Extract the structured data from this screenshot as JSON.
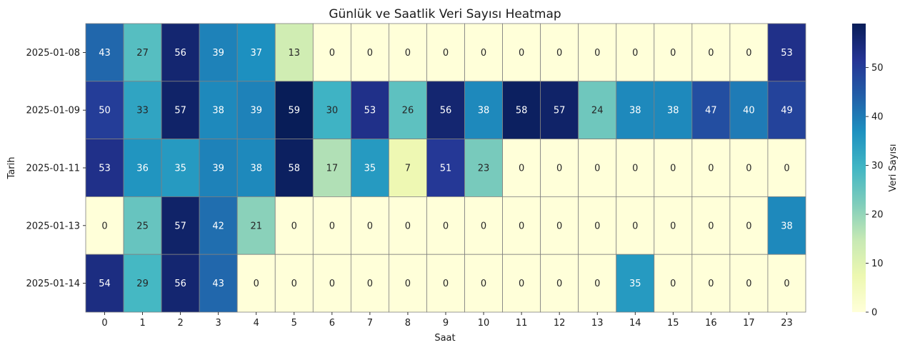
{
  "chart_data": {
    "type": "heatmap",
    "title": "Günlük ve Saatlik Veri Sayısı Heatmap",
    "xlabel": "Saat",
    "ylabel": "Tarih",
    "x_categories": [
      "0",
      "1",
      "2",
      "3",
      "4",
      "5",
      "6",
      "7",
      "8",
      "9",
      "10",
      "11",
      "12",
      "13",
      "14",
      "15",
      "16",
      "17",
      "23"
    ],
    "y_categories": [
      "2025-01-08",
      "2025-01-09",
      "2025-01-11",
      "2025-01-13",
      "2025-01-14"
    ],
    "values": [
      [
        43,
        27,
        56,
        39,
        37,
        13,
        0,
        0,
        0,
        0,
        0,
        0,
        0,
        0,
        0,
        0,
        0,
        0,
        53
      ],
      [
        50,
        33,
        57,
        38,
        39,
        59,
        30,
        53,
        26,
        56,
        38,
        58,
        57,
        24,
        38,
        38,
        47,
        40,
        49
      ],
      [
        53,
        36,
        35,
        39,
        38,
        58,
        17,
        35,
        7,
        51,
        23,
        0,
        0,
        0,
        0,
        0,
        0,
        0,
        0
      ],
      [
        0,
        25,
        57,
        42,
        21,
        0,
        0,
        0,
        0,
        0,
        0,
        0,
        0,
        0,
        0,
        0,
        0,
        0,
        38
      ],
      [
        54,
        29,
        56,
        43,
        0,
        0,
        0,
        0,
        0,
        0,
        0,
        0,
        0,
        0,
        35,
        0,
        0,
        0,
        0
      ]
    ],
    "colorbar": {
      "label": "Veri Sayısı",
      "min": 0,
      "max": 59,
      "ticks": [
        0,
        10,
        20,
        30,
        40,
        50
      ]
    },
    "colormap": "YlGnBu",
    "colormap_stops": [
      "#ffffd9",
      "#edf8b1",
      "#c7e9b4",
      "#7fcdbb",
      "#41b6c4",
      "#1d91c0",
      "#225ea8",
      "#253494",
      "#081d58"
    ],
    "cell_border_color": "#808080",
    "grid": false
  }
}
